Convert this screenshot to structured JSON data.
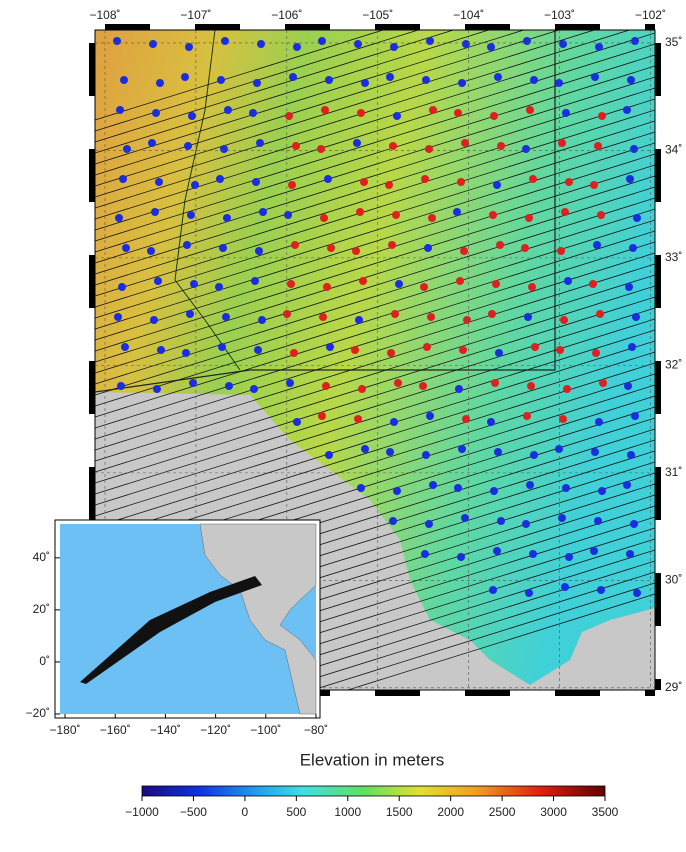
{
  "main_map": {
    "xlim": [
      -108.11,
      -101.95
    ],
    "ylim": [
      28.98,
      35.12
    ],
    "xticks": [
      {
        "value": -108,
        "label": "−108˚"
      },
      {
        "value": -107,
        "label": "−107˚"
      },
      {
        "value": -106,
        "label": "−106˚"
      },
      {
        "value": -105,
        "label": "−105˚"
      },
      {
        "value": -104,
        "label": "−104˚"
      },
      {
        "value": -103,
        "label": "−103˚"
      },
      {
        "value": -102,
        "label": "−102˚"
      }
    ],
    "yticks": [
      {
        "value": 29,
        "label": "29˚"
      },
      {
        "value": 30,
        "label": "30˚"
      },
      {
        "value": 31,
        "label": "31˚"
      },
      {
        "value": 32,
        "label": "32˚"
      },
      {
        "value": 33,
        "label": "33˚"
      },
      {
        "value": 34,
        "label": "34˚"
      },
      {
        "value": 35,
        "label": "35˚"
      }
    ]
  },
  "inset_map": {
    "xlim": [
      -182,
      -80
    ],
    "ylim": [
      -20,
      53
    ],
    "xticks": [
      {
        "value": -180,
        "label": "−180˚"
      },
      {
        "value": -160,
        "label": "−160˚"
      },
      {
        "value": -140,
        "label": "−140˚"
      },
      {
        "value": -120,
        "label": "−120˚"
      },
      {
        "value": -100,
        "label": "−100˚"
      },
      {
        "value": -80,
        "label": "−80˚"
      }
    ],
    "yticks": [
      {
        "value": -20,
        "label": "−20˚"
      },
      {
        "value": 0,
        "label": "0˚"
      },
      {
        "value": 20,
        "label": "20˚"
      },
      {
        "value": 40,
        "label": "40˚"
      }
    ]
  },
  "colorbar": {
    "title": "Elevation in meters",
    "lim": [
      -1000,
      3500
    ],
    "ticks": [
      {
        "value": -1000,
        "label": "−1000"
      },
      {
        "value": -500,
        "label": "−500"
      },
      0,
      500,
      1000,
      1500,
      2000,
      2500,
      3000,
      3500
    ]
  }
}
